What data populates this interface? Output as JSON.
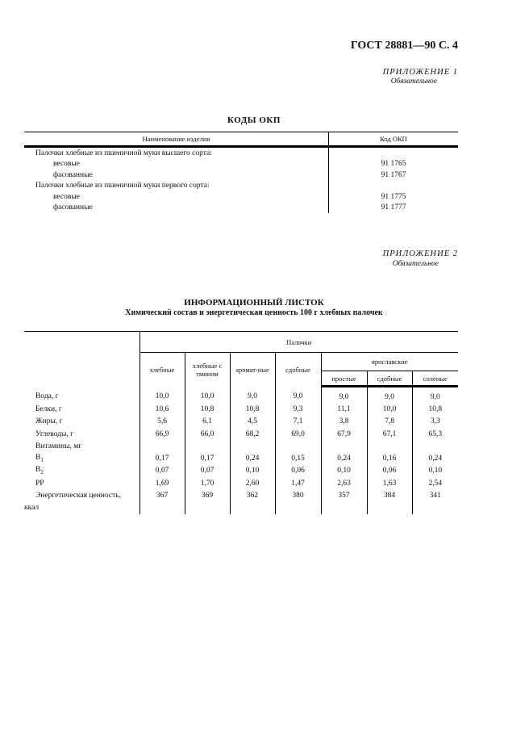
{
  "header": {
    "doc": "ГОСТ 28881—90 С. 4"
  },
  "appendix1": {
    "title": "ПРИЛОЖЕНИЕ 1",
    "status": "Обязательное"
  },
  "okp": {
    "title": "КОДЫ ОКП",
    "headers": [
      "Наименование изделия",
      "Код ОКП"
    ],
    "rows": [
      {
        "name": "Палочки хлебные из пшеничной муки высшего сорта:",
        "code": "",
        "indent": false
      },
      {
        "name": "весовые",
        "code": "91 1765",
        "indent": true
      },
      {
        "name": "фасованные",
        "code": "91 1767",
        "indent": true
      },
      {
        "name": "Палочки хлебные из пшеничной муки первого сорта:",
        "code": "",
        "indent": false
      },
      {
        "name": "весовые",
        "code": "91 1775",
        "indent": true
      },
      {
        "name": "фасованные",
        "code": "91 1777",
        "indent": true
      }
    ]
  },
  "appendix2": {
    "title": "ПРИЛОЖЕНИЕ 2",
    "status": "Обязательное"
  },
  "info": {
    "title": "ИНФОРМАЦИОННЫЙ ЛИСТОК",
    "subtitle": "Химический состав и энергетическая ценность 100 г хлебных палочек",
    "group": "Палочки",
    "subgroup": "ярославские",
    "columns": [
      "хлебные",
      "хлебные с тмином",
      "аромат-ные",
      "сдобные",
      "простые",
      "сдобные",
      "соленые"
    ],
    "rows": [
      {
        "label": "Вода, г",
        "values": [
          "10,0",
          "10,0",
          "9,0",
          "9,0",
          "9,0",
          "9,0",
          "9,0"
        ]
      },
      {
        "label": "Белки, г",
        "values": [
          "10,6",
          "10,8",
          "10,8",
          "9,3",
          "11,1",
          "10,0",
          "10,8"
        ]
      },
      {
        "label": "Жиры, г",
        "values": [
          "5,6",
          "6,1",
          "4,5",
          "7,1",
          "3,8",
          "7,8",
          "3,3"
        ]
      },
      {
        "label": "Углеводы, г",
        "values": [
          "66,9",
          "66,0",
          "68,2",
          "69,0",
          "67,9",
          "67,1",
          "65,3"
        ]
      },
      {
        "label": "Витамины, мг",
        "values": [
          "",
          "",
          "",
          "",
          "",
          "",
          ""
        ]
      },
      {
        "label": "B",
        "sub": "1",
        "values": [
          "0,17",
          "0,17",
          "0,24",
          "0,15",
          "0,24",
          "0,16",
          "0,24"
        ]
      },
      {
        "label": "B",
        "sub": "2",
        "values": [
          "0,07",
          "0,07",
          "0,10",
          "0,06",
          "0,10",
          "0,06",
          "0,10"
        ]
      },
      {
        "label": "PP",
        "values": [
          "1,69",
          "1,70",
          "2,60",
          "1,47",
          "2,63",
          "1,63",
          "2,54"
        ]
      },
      {
        "label": "Энергетическая ценность,",
        "values": [
          "367",
          "369",
          "362",
          "380",
          "357",
          "384",
          "341"
        ]
      },
      {
        "label": "ккал",
        "values": [
          "",
          "",
          "",
          "",
          "",
          "",
          ""
        ],
        "outdent": true
      }
    ]
  }
}
